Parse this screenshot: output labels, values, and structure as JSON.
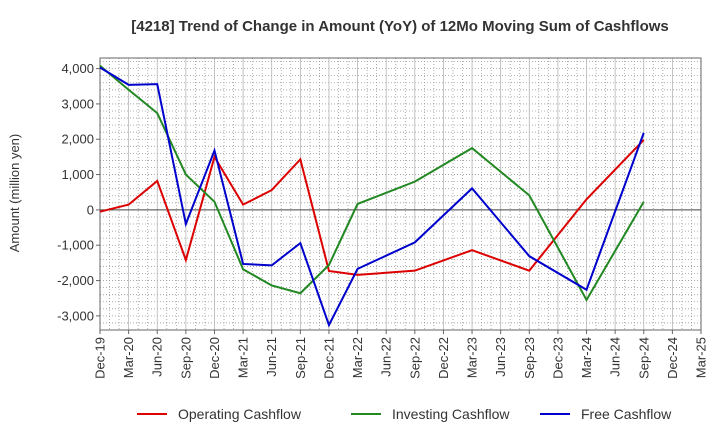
{
  "chart_data": {
    "type": "line",
    "title": "[4218]  Trend of Change in Amount (YoY) of 12Mo Moving Sum of Cashflows",
    "ylabel": "Amount (million yen)",
    "xlabel": "",
    "ylim": [
      -3400,
      4300
    ],
    "yticks": [
      4000,
      3000,
      2000,
      1000,
      0,
      -1000,
      -2000,
      -3000
    ],
    "ytick_labels": [
      "4,000",
      "3,000",
      "2,000",
      "1,000",
      "0",
      "-1,000",
      "-2,000",
      "-3,000"
    ],
    "categories": [
      "Dec-19",
      "Mar-20",
      "Jun-20",
      "Sep-20",
      "Dec-20",
      "Mar-21",
      "Jun-21",
      "Sep-21",
      "Dec-21",
      "Mar-22",
      "Jun-22",
      "Sep-22",
      "Dec-22",
      "Mar-23",
      "Jun-23",
      "Sep-23",
      "Dec-23",
      "Mar-24",
      "Jun-24",
      "Sep-24",
      "Dec-24",
      "Mar-25"
    ],
    "grid": true,
    "legend_position": "bottom",
    "series": [
      {
        "name": "Operating Cashflow",
        "color": "#dd0000",
        "values": [
          -50,
          150,
          820,
          -1420,
          1500,
          150,
          560,
          1430,
          -1730,
          -1840,
          null,
          -1720,
          null,
          -1140,
          null,
          -1720,
          null,
          300,
          null,
          1980,
          null,
          null
        ]
      },
      {
        "name": "Investing Cashflow",
        "color": "#228822",
        "values": [
          4080,
          3400,
          2740,
          1000,
          230,
          -1680,
          -2140,
          -2360,
          -1560,
          170,
          null,
          800,
          null,
          1750,
          null,
          410,
          null,
          -2550,
          null,
          230,
          null,
          null
        ]
      },
      {
        "name": "Free Cashflow",
        "color": "#0000cc",
        "values": [
          4030,
          3540,
          3560,
          -400,
          1680,
          -1530,
          -1570,
          -940,
          -3260,
          -1670,
          null,
          -920,
          null,
          610,
          null,
          -1310,
          null,
          -2260,
          null,
          2180,
          null,
          null
        ]
      }
    ]
  }
}
